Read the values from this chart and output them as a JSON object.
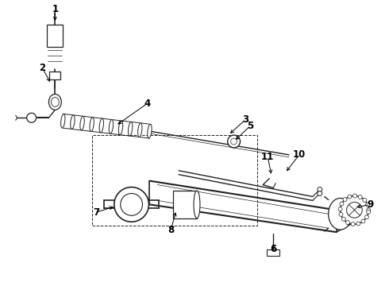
{
  "bg_color": "#ffffff",
  "line_color": "#222222",
  "label_color": "#000000",
  "fig_width": 4.9,
  "fig_height": 3.6,
  "dpi": 100,
  "arrow_color": "#000000"
}
